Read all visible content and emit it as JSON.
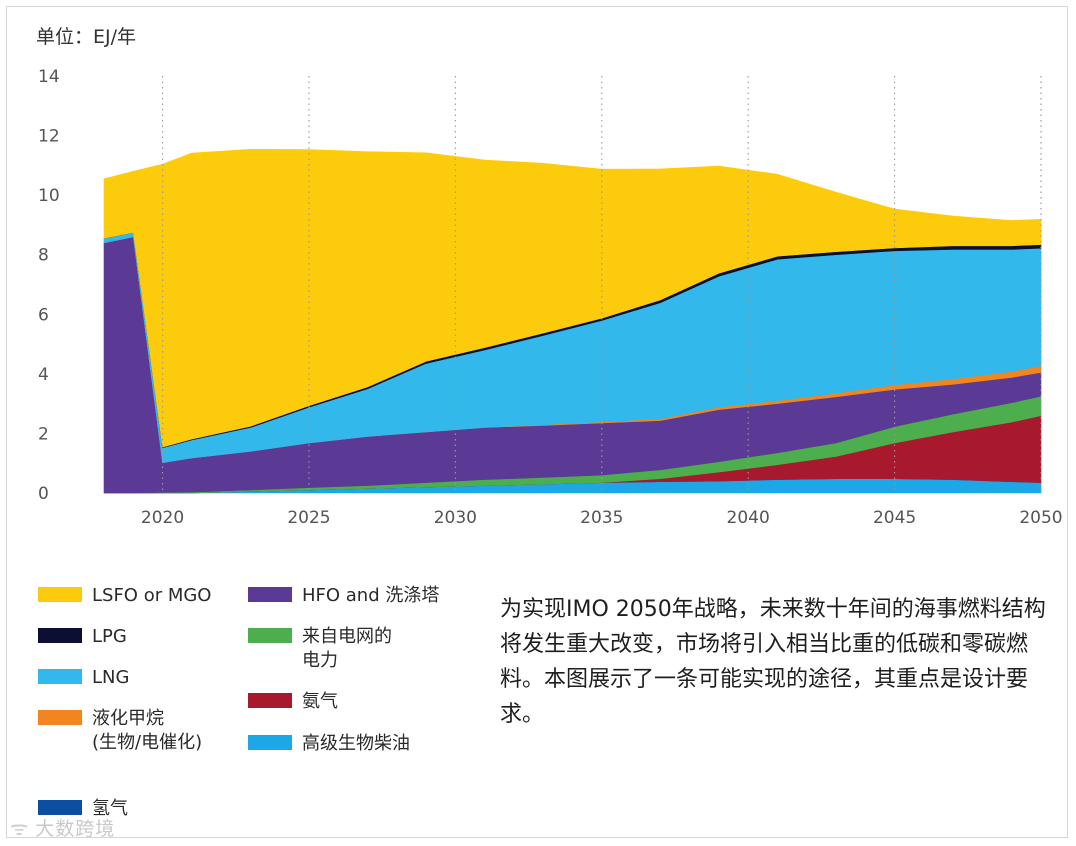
{
  "unit_label": "单位：EJ/年",
  "chart_data": {
    "type": "area",
    "stacked": true,
    "ylabel_text": "单位：EJ/年",
    "ylim": [
      0,
      14
    ],
    "xlim": [
      2018,
      2050
    ],
    "y_ticks": [
      0,
      2,
      4,
      6,
      8,
      10,
      12,
      14
    ],
    "x_ticks": [
      2020,
      2025,
      2030,
      2035,
      2040,
      2045,
      2050
    ],
    "grid": "vertical dotted",
    "x": [
      2018,
      2019,
      2020,
      2021,
      2023,
      2025,
      2027,
      2029,
      2031,
      2033,
      2035,
      2037,
      2039,
      2041,
      2043,
      2045,
      2047,
      2049,
      2050
    ],
    "series": [
      {
        "name": "高级生物柴油",
        "color": "#1ca7e6",
        "values": [
          0,
          0,
          0,
          0,
          0.05,
          0.1,
          0.15,
          0.2,
          0.25,
          0.3,
          0.35,
          0.38,
          0.4,
          0.45,
          0.48,
          0.48,
          0.45,
          0.38,
          0.35
        ]
      },
      {
        "name": "氢气",
        "color": "#0b4fa3",
        "values": [
          0,
          0,
          0,
          0,
          0,
          0,
          0,
          0,
          0,
          0,
          0,
          0,
          0,
          0,
          0,
          0,
          0,
          0,
          0
        ]
      },
      {
        "name": "氨气",
        "color": "#a8192e",
        "values": [
          0,
          0,
          0,
          0,
          0,
          0,
          0,
          0,
          0,
          0,
          0,
          0.1,
          0.3,
          0.5,
          0.75,
          1.2,
          1.6,
          2.0,
          2.25
        ]
      },
      {
        "name": "来自电网的电力",
        "color": "#4cae4c",
        "values": [
          0,
          0,
          0.02,
          0.03,
          0.05,
          0.08,
          0.1,
          0.15,
          0.2,
          0.22,
          0.25,
          0.3,
          0.35,
          0.4,
          0.45,
          0.55,
          0.6,
          0.65,
          0.65
        ]
      },
      {
        "name": "HFO and 洗涤塔",
        "color": "#5a3a94",
        "values": [
          8.4,
          8.6,
          1.0,
          1.15,
          1.3,
          1.5,
          1.65,
          1.7,
          1.75,
          1.75,
          1.75,
          1.65,
          1.75,
          1.65,
          1.55,
          1.25,
          1.0,
          0.85,
          0.8
        ]
      },
      {
        "name": "液化甲烷 (生物/电催化)",
        "color": "#f2851f",
        "values": [
          0,
          0,
          0,
          0,
          0,
          0,
          0,
          0,
          0,
          0.02,
          0.04,
          0.06,
          0.08,
          0.1,
          0.12,
          0.15,
          0.18,
          0.2,
          0.22
        ]
      },
      {
        "name": "LNG",
        "color": "#33b8ec",
        "values": [
          0.15,
          0.15,
          0.5,
          0.6,
          0.8,
          1.2,
          1.6,
          2.3,
          2.6,
          3.0,
          3.4,
          3.9,
          4.4,
          4.75,
          4.65,
          4.5,
          4.35,
          4.1,
          3.95
        ]
      },
      {
        "name": "LPG",
        "color": "#0a0f33",
        "values": [
          0,
          0,
          0.02,
          0.03,
          0.04,
          0.05,
          0.06,
          0.07,
          0.08,
          0.08,
          0.08,
          0.09,
          0.1,
          0.1,
          0.1,
          0.1,
          0.12,
          0.12,
          0.12
        ]
      },
      {
        "name": "LSFO or MGO",
        "color": "#fccb0b",
        "values": [
          2.0,
          2.05,
          9.5,
          9.6,
          9.3,
          8.6,
          7.9,
          7.0,
          6.3,
          5.7,
          5.0,
          4.4,
          3.6,
          2.75,
          2.0,
          1.3,
          1.0,
          0.85,
          0.85
        ]
      }
    ]
  },
  "legend": [
    {
      "key": "lsfo",
      "label": "LSFO or MGO",
      "color": "#fccb0b"
    },
    {
      "key": "lpg",
      "label": "LPG",
      "color": "#0a0f33"
    },
    {
      "key": "lng",
      "label": "LNG",
      "color": "#33b8ec"
    },
    {
      "key": "methane",
      "label": "液化甲烷\n(生物/电催化)",
      "color": "#f2851f"
    },
    {
      "key": "hydrogen",
      "label": "氢气",
      "color": "#0b4fa3"
    },
    {
      "key": "hfo",
      "label": "HFO and 洗涤塔",
      "color": "#5a3a94"
    },
    {
      "key": "grid",
      "label": "来自电网的\n电力",
      "color": "#4cae4c"
    },
    {
      "key": "ammonia",
      "label": "氨气",
      "color": "#a8192e"
    },
    {
      "key": "biodiesel",
      "label": "高级生物柴油",
      "color": "#1ca7e6"
    }
  ],
  "note": "为实现IMO 2050年战略，未来数十年间的海事燃料结构将发生重大改变，市场将引入相当比重的低碳和零碳燃料。本图展示了一条可能实现的途径，其重点是设计要求。",
  "watermark": {
    "icon": "wechat-icon",
    "text": "大数跨境"
  }
}
